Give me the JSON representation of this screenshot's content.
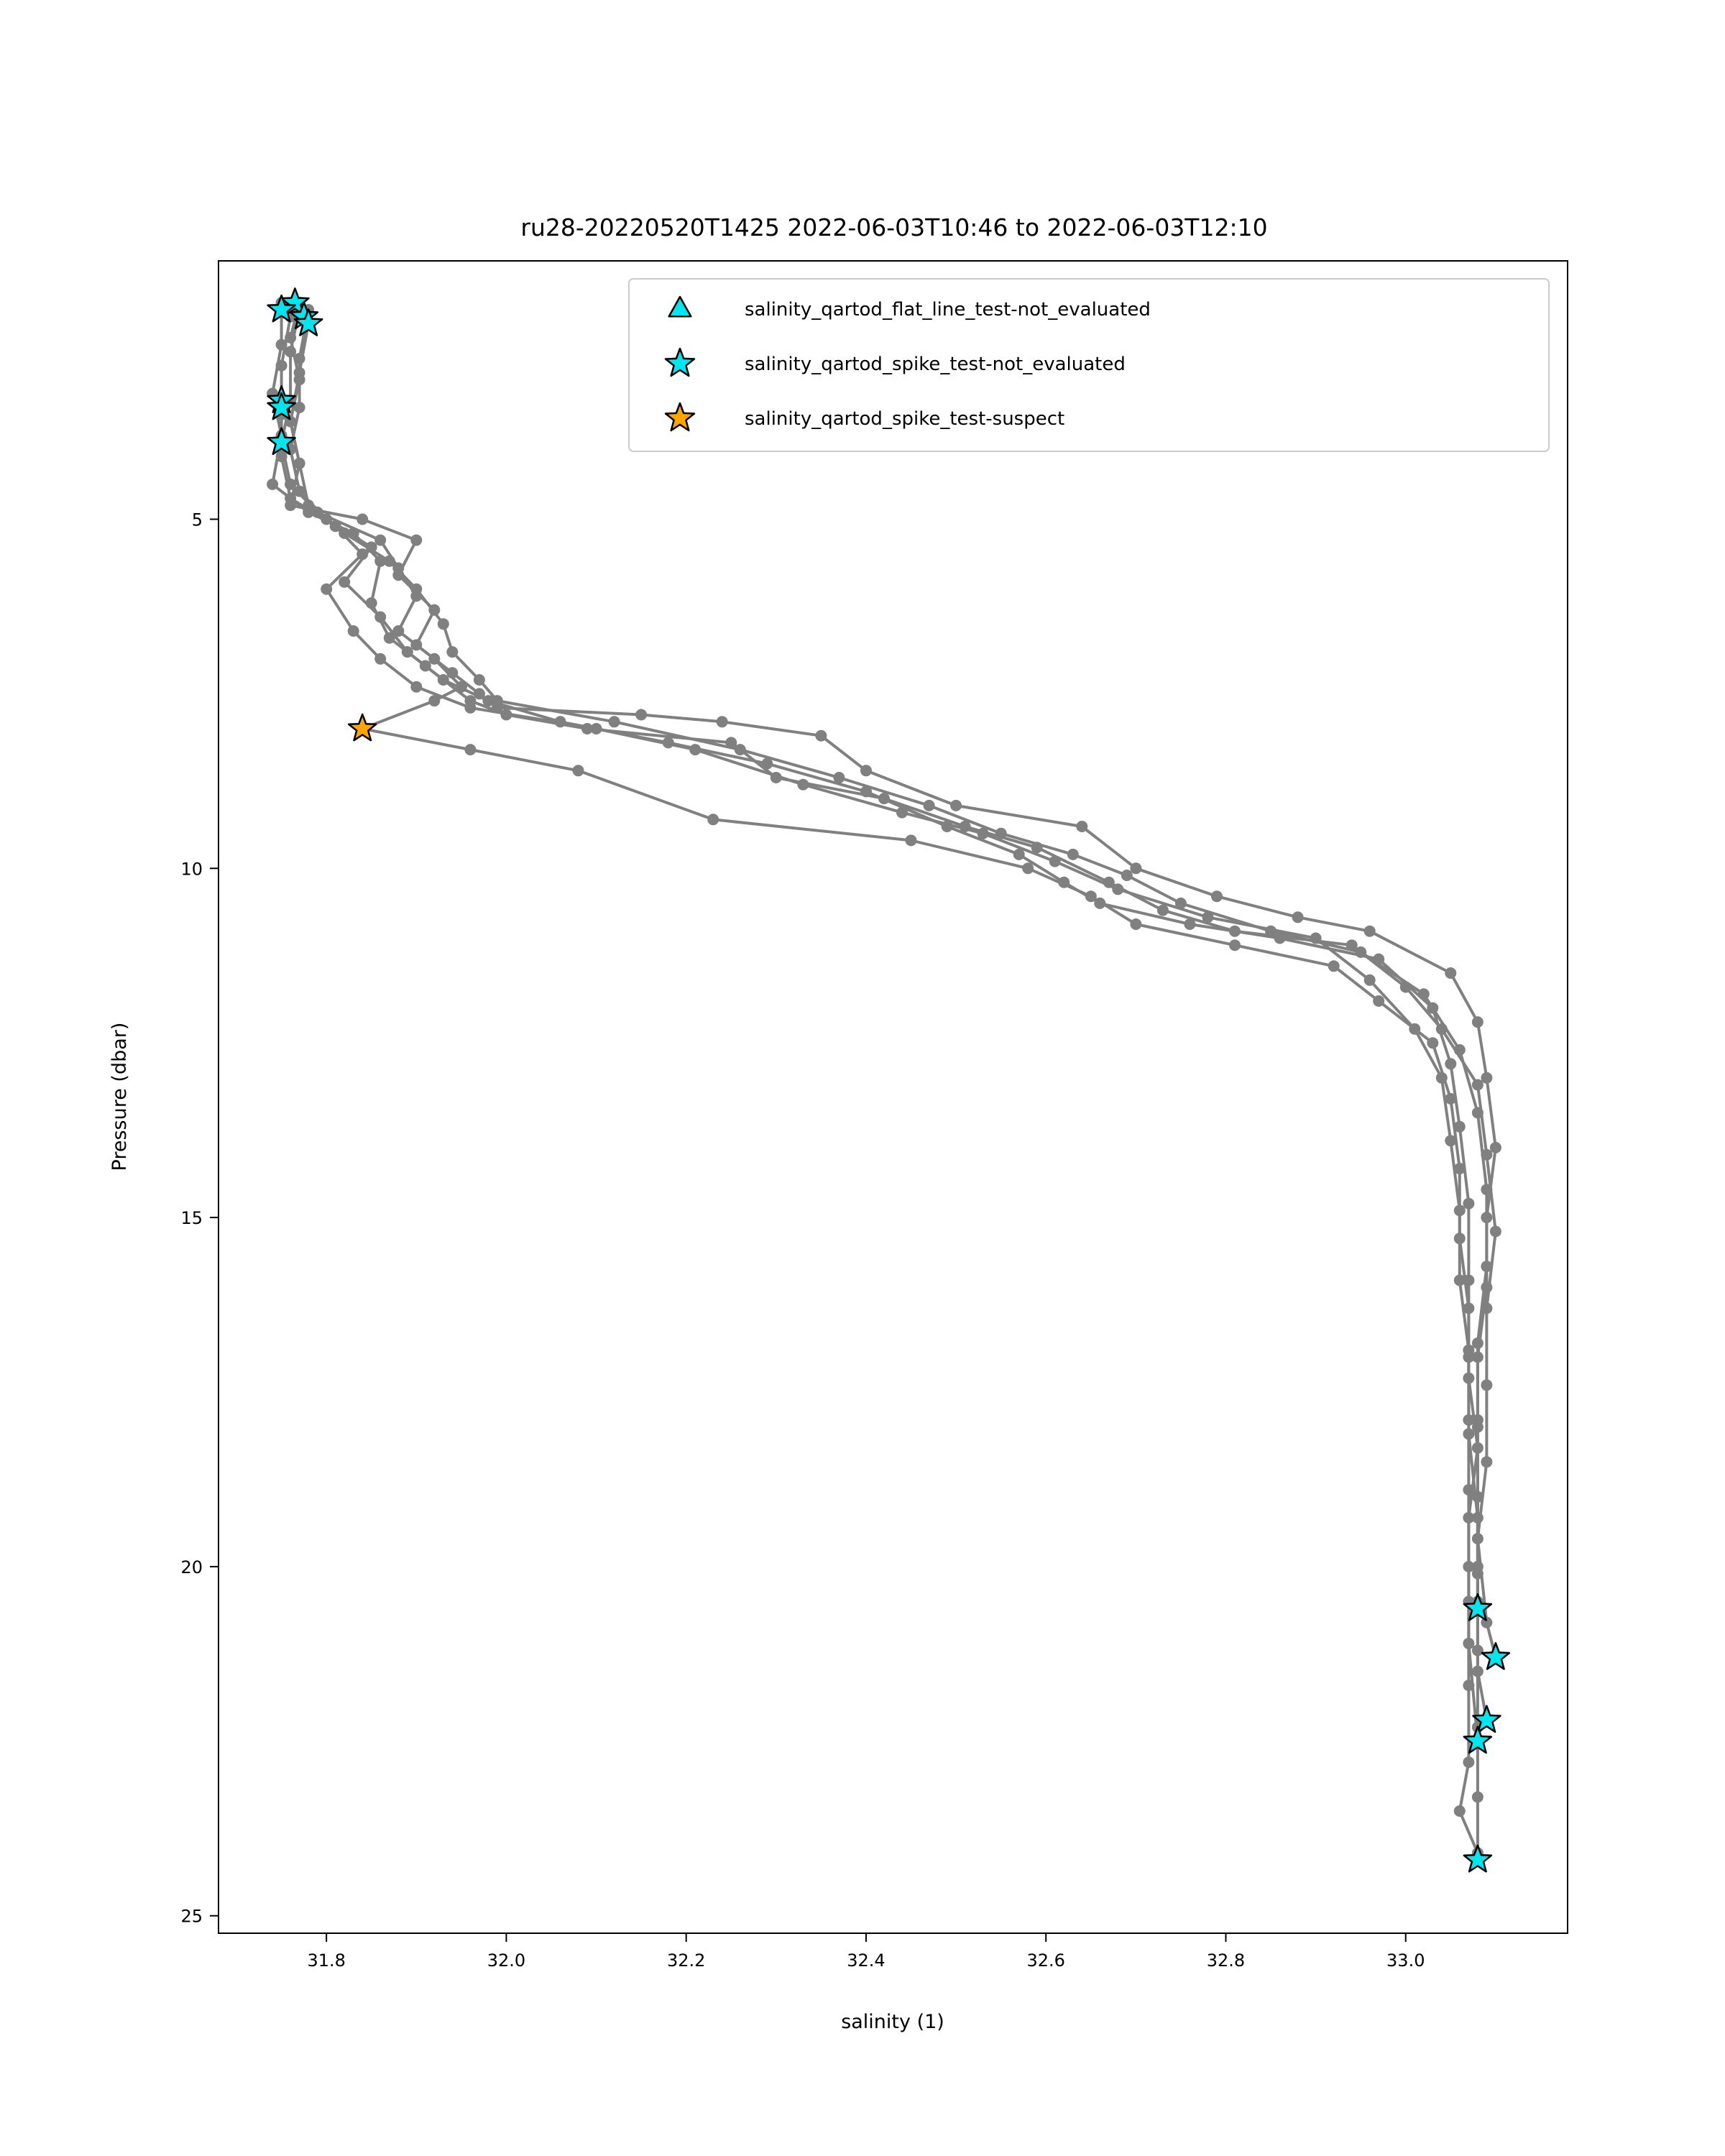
{
  "chart_data": {
    "type": "scatter",
    "title": "ru28-20220520T1425 2022-06-03T10:46 to 2022-06-03T12:10",
    "xlabel": "salinity (1)",
    "ylabel": "Pressure (dbar)",
    "xlim": [
      31.68,
      33.18
    ],
    "ylim": [
      25.25,
      1.3
    ],
    "y_inverted": true,
    "grid": false,
    "legend_position": "top-right",
    "xticks": [
      31.8,
      32.0,
      32.2,
      32.4,
      32.6,
      32.8,
      33.0
    ],
    "xtick_labels": [
      "31.8",
      "32.0",
      "32.2",
      "32.4",
      "32.6",
      "32.8",
      "33.0"
    ],
    "yticks": [
      5,
      10,
      15,
      20,
      25
    ],
    "ytick_labels": [
      "5",
      "10",
      "15",
      "20",
      "25"
    ],
    "profile_color": "#808080",
    "legend": [
      {
        "label": "salinity_qartod_flat_line_test-not_evaluated",
        "marker": "triangle",
        "color": "#00e5ee"
      },
      {
        "label": "salinity_qartod_spike_test-not_evaluated",
        "marker": "star",
        "color": "#00e5ee"
      },
      {
        "label": "salinity_qartod_spike_test-suspect",
        "marker": "star",
        "color": "#ffa500"
      }
    ],
    "series": [
      {
        "points": [
          [
            31.77,
            1.9
          ],
          [
            31.76,
            2.4
          ],
          [
            31.77,
            3.0
          ],
          [
            31.76,
            3.6
          ],
          [
            31.77,
            4.2
          ],
          [
            31.76,
            4.8
          ],
          [
            31.84,
            5.0
          ],
          [
            31.9,
            5.3
          ],
          [
            31.88,
            5.8
          ],
          [
            31.92,
            6.3
          ],
          [
            31.9,
            6.8
          ],
          [
            31.94,
            7.2
          ],
          [
            31.97,
            7.5
          ],
          [
            31.99,
            7.7
          ],
          [
            32.15,
            7.8
          ],
          [
            32.24,
            7.9
          ],
          [
            32.35,
            8.1
          ],
          [
            32.4,
            8.6
          ],
          [
            32.5,
            9.1
          ],
          [
            32.64,
            9.4
          ],
          [
            32.7,
            10.0
          ],
          [
            32.79,
            10.4
          ],
          [
            32.88,
            10.7
          ],
          [
            32.96,
            10.9
          ],
          [
            33.05,
            11.5
          ],
          [
            33.08,
            12.2
          ],
          [
            33.09,
            13.0
          ],
          [
            33.1,
            14.0
          ],
          [
            33.09,
            15.0
          ],
          [
            33.09,
            16.0
          ],
          [
            33.08,
            17.0
          ],
          [
            33.08,
            18.0
          ],
          [
            33.08,
            19.0
          ],
          [
            33.08,
            20.0
          ],
          [
            33.08,
            20.6
          ]
        ]
      },
      {
        "points": [
          [
            31.75,
            1.9
          ],
          [
            31.75,
            2.5
          ],
          [
            31.74,
            3.2
          ],
          [
            31.75,
            3.8
          ],
          [
            31.74,
            4.5
          ],
          [
            31.78,
            4.9
          ],
          [
            31.83,
            5.2
          ],
          [
            31.86,
            5.6
          ],
          [
            31.85,
            6.2
          ],
          [
            31.87,
            6.7
          ],
          [
            31.91,
            7.1
          ],
          [
            31.96,
            7.6
          ],
          [
            32.0,
            7.8
          ],
          [
            32.09,
            8.0
          ],
          [
            32.25,
            8.2
          ],
          [
            32.3,
            8.7
          ],
          [
            32.42,
            9.0
          ],
          [
            32.51,
            9.4
          ],
          [
            32.59,
            9.7
          ],
          [
            32.67,
            10.2
          ],
          [
            32.73,
            10.6
          ],
          [
            32.81,
            10.9
          ],
          [
            32.94,
            11.1
          ],
          [
            33.0,
            11.7
          ],
          [
            33.04,
            12.3
          ],
          [
            33.08,
            13.1
          ],
          [
            33.09,
            14.1
          ],
          [
            33.1,
            15.2
          ],
          [
            33.09,
            16.3
          ],
          [
            33.09,
            17.4
          ],
          [
            33.09,
            18.5
          ],
          [
            33.08,
            19.6
          ],
          [
            33.09,
            20.8
          ],
          [
            33.1,
            21.3
          ]
        ]
      },
      {
        "points": [
          [
            31.78,
            2.0
          ],
          [
            31.77,
            2.7
          ],
          [
            31.77,
            3.4
          ],
          [
            31.76,
            4.0
          ],
          [
            31.77,
            4.6
          ],
          [
            31.8,
            5.0
          ],
          [
            31.85,
            5.4
          ],
          [
            31.82,
            5.9
          ],
          [
            31.86,
            6.4
          ],
          [
            31.89,
            6.9
          ],
          [
            31.93,
            7.3
          ],
          [
            31.98,
            7.6
          ],
          [
            32.06,
            7.9
          ],
          [
            32.18,
            8.2
          ],
          [
            32.29,
            8.5
          ],
          [
            32.4,
            8.9
          ],
          [
            32.49,
            9.4
          ],
          [
            32.57,
            9.8
          ],
          [
            32.62,
            10.2
          ],
          [
            32.66,
            10.5
          ],
          [
            32.76,
            10.8
          ],
          [
            32.86,
            11.0
          ],
          [
            32.97,
            11.3
          ],
          [
            33.03,
            12.0
          ],
          [
            33.05,
            12.8
          ],
          [
            33.06,
            13.7
          ],
          [
            33.07,
            14.8
          ],
          [
            33.07,
            15.9
          ],
          [
            33.07,
            17.0
          ],
          [
            33.07,
            18.1
          ],
          [
            33.08,
            19.3
          ],
          [
            33.08,
            20.5
          ],
          [
            33.08,
            21.5
          ],
          [
            33.09,
            22.2
          ]
        ]
      },
      {
        "points": [
          [
            31.76,
            2.1
          ],
          [
            31.75,
            2.8
          ],
          [
            31.75,
            3.5
          ],
          [
            31.75,
            4.1
          ],
          [
            31.76,
            4.7
          ],
          [
            31.81,
            5.1
          ],
          [
            31.84,
            5.5
          ],
          [
            31.8,
            6.0
          ],
          [
            31.83,
            6.6
          ],
          [
            31.86,
            7.0
          ],
          [
            31.9,
            7.4
          ],
          [
            31.96,
            7.7
          ],
          [
            32.1,
            8.0
          ],
          [
            32.21,
            8.3
          ],
          [
            32.33,
            8.8
          ],
          [
            32.44,
            9.2
          ],
          [
            32.53,
            9.5
          ],
          [
            32.61,
            9.9
          ],
          [
            32.68,
            10.3
          ],
          [
            32.78,
            10.7
          ],
          [
            32.9,
            11.0
          ],
          [
            32.96,
            11.6
          ],
          [
            33.01,
            12.3
          ],
          [
            33.04,
            13.0
          ],
          [
            33.05,
            13.9
          ],
          [
            33.06,
            14.9
          ],
          [
            33.06,
            15.9
          ],
          [
            33.07,
            16.9
          ],
          [
            33.07,
            17.9
          ],
          [
            33.07,
            18.9
          ],
          [
            33.07,
            20.0
          ],
          [
            33.07,
            21.1
          ],
          [
            33.08,
            22.5
          ]
        ]
      },
      {
        "points": [
          [
            31.77,
            2.0
          ],
          [
            31.76,
            2.6
          ],
          [
            31.76,
            3.3
          ],
          [
            31.75,
            3.9
          ],
          [
            31.76,
            4.5
          ],
          [
            31.79,
            4.9
          ],
          [
            31.86,
            5.3
          ],
          [
            31.88,
            5.7
          ],
          [
            31.9,
            6.1
          ],
          [
            31.88,
            6.6
          ],
          [
            31.92,
            7.0
          ],
          [
            31.95,
            7.4
          ],
          [
            31.92,
            7.6
          ],
          [
            31.84,
            8.0
          ],
          [
            31.96,
            8.3
          ],
          [
            32.08,
            8.6
          ],
          [
            32.23,
            9.3
          ],
          [
            32.45,
            9.6
          ],
          [
            32.58,
            10.0
          ],
          [
            32.65,
            10.4
          ],
          [
            32.7,
            10.8
          ],
          [
            32.81,
            11.1
          ],
          [
            32.92,
            11.4
          ],
          [
            32.97,
            11.9
          ],
          [
            33.03,
            12.5
          ],
          [
            33.05,
            13.3
          ],
          [
            33.06,
            14.3
          ],
          [
            33.06,
            15.3
          ],
          [
            33.07,
            16.3
          ],
          [
            33.07,
            17.3
          ],
          [
            33.08,
            18.3
          ],
          [
            33.07,
            19.3
          ],
          [
            33.07,
            20.5
          ],
          [
            33.07,
            21.7
          ],
          [
            33.07,
            22.8
          ],
          [
            33.06,
            23.5
          ],
          [
            33.08,
            24.1
          ]
        ]
      },
      {
        "points": [
          [
            31.78,
            2.2
          ],
          [
            31.77,
            2.9
          ],
          [
            31.76,
            3.6
          ],
          [
            31.77,
            4.2
          ],
          [
            31.78,
            4.8
          ],
          [
            31.82,
            5.2
          ],
          [
            31.87,
            5.6
          ],
          [
            31.9,
            6.0
          ],
          [
            31.93,
            6.5
          ],
          [
            31.94,
            6.9
          ],
          [
            31.97,
            7.3
          ],
          [
            31.99,
            7.6
          ],
          [
            32.12,
            7.9
          ],
          [
            32.26,
            8.3
          ],
          [
            32.37,
            8.7
          ],
          [
            32.47,
            9.1
          ],
          [
            32.55,
            9.5
          ],
          [
            32.63,
            9.8
          ],
          [
            32.69,
            10.1
          ],
          [
            32.75,
            10.5
          ],
          [
            32.85,
            10.9
          ],
          [
            32.95,
            11.2
          ],
          [
            33.02,
            11.8
          ],
          [
            33.06,
            12.6
          ],
          [
            33.08,
            13.5
          ],
          [
            33.09,
            14.6
          ],
          [
            33.09,
            15.7
          ],
          [
            33.08,
            16.8
          ],
          [
            33.08,
            17.9
          ],
          [
            33.08,
            19.0
          ],
          [
            33.08,
            20.1
          ],
          [
            33.08,
            21.2
          ],
          [
            33.08,
            22.3
          ],
          [
            33.08,
            23.3
          ],
          [
            33.08,
            24.2
          ]
        ]
      }
    ],
    "flags": [
      {
        "test": "salinity_qartod_spike_test-not_evaluated",
        "marker": "star",
        "color": "#00e5ee",
        "points": [
          [
            31.765,
            1.9
          ],
          [
            31.75,
            2.0
          ],
          [
            31.775,
            2.1
          ],
          [
            31.78,
            2.2
          ],
          [
            31.75,
            3.3
          ],
          [
            31.75,
            3.4
          ],
          [
            31.75,
            3.9
          ],
          [
            33.08,
            20.6
          ],
          [
            33.1,
            21.3
          ],
          [
            33.09,
            22.2
          ],
          [
            33.08,
            22.5
          ],
          [
            33.08,
            24.2
          ]
        ]
      },
      {
        "test": "salinity_qartod_spike_test-suspect",
        "marker": "star",
        "color": "#ffa500",
        "points": [
          [
            31.84,
            8.0
          ]
        ]
      }
    ]
  }
}
